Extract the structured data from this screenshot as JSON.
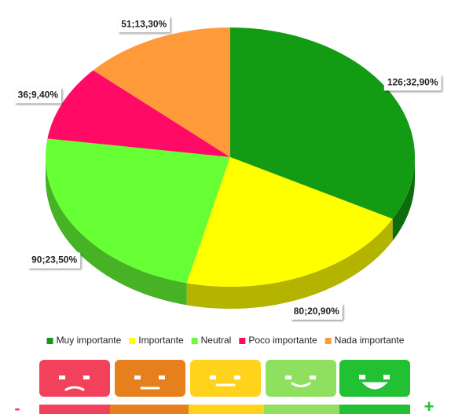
{
  "chart_data": {
    "type": "pie",
    "categories": [
      "Muy importante",
      "Importante",
      "Neutral",
      "Poco importante",
      "Nada importante"
    ],
    "values": [
      126,
      80,
      90,
      36,
      51
    ],
    "value_labels": [
      "126;32,90%",
      "80;20,90%",
      "90;23,50%",
      "36;9,40%",
      "51;13,30%"
    ],
    "colors": [
      "#139b13",
      "#ffff00",
      "#66ff33",
      "#ff0a64",
      "#ff9a3a"
    ],
    "legend": "bottom"
  },
  "scale": {
    "low": "-",
    "high": "+"
  }
}
